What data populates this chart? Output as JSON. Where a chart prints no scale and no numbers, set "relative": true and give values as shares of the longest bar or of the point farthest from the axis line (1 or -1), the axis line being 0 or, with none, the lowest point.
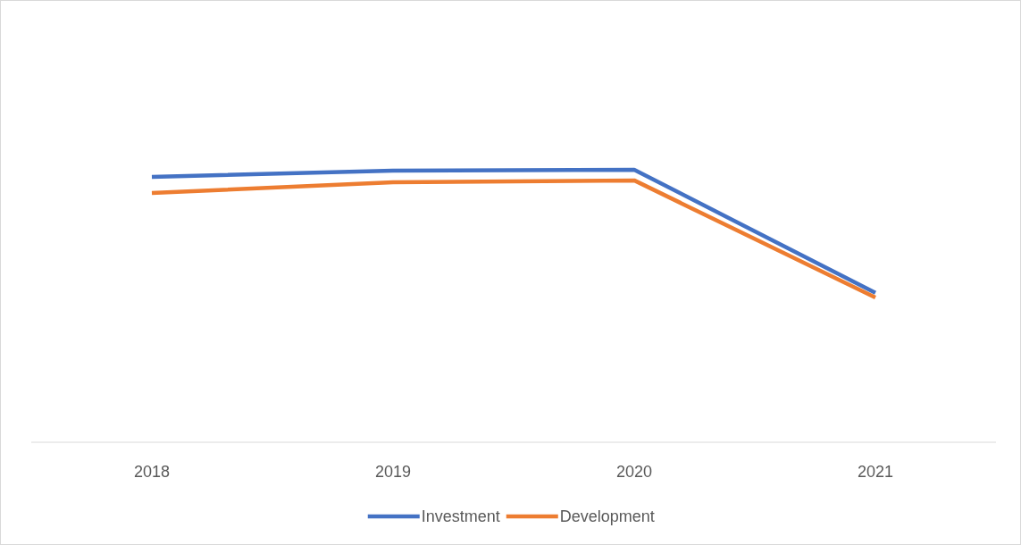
{
  "chart_data": {
    "type": "line",
    "relative": true,
    "categories": [
      "2018",
      "2019",
      "2020",
      "2021"
    ],
    "series": [
      {
        "name": "Investment",
        "color": "#4472c4",
        "values": [
          0.974,
          0.997,
          1,
          0.548
        ]
      },
      {
        "name": "Development",
        "color": "#ed7d31",
        "values": [
          0.915,
          0.954,
          0.961,
          0.531
        ]
      }
    ],
    "legend": "bottom"
  }
}
